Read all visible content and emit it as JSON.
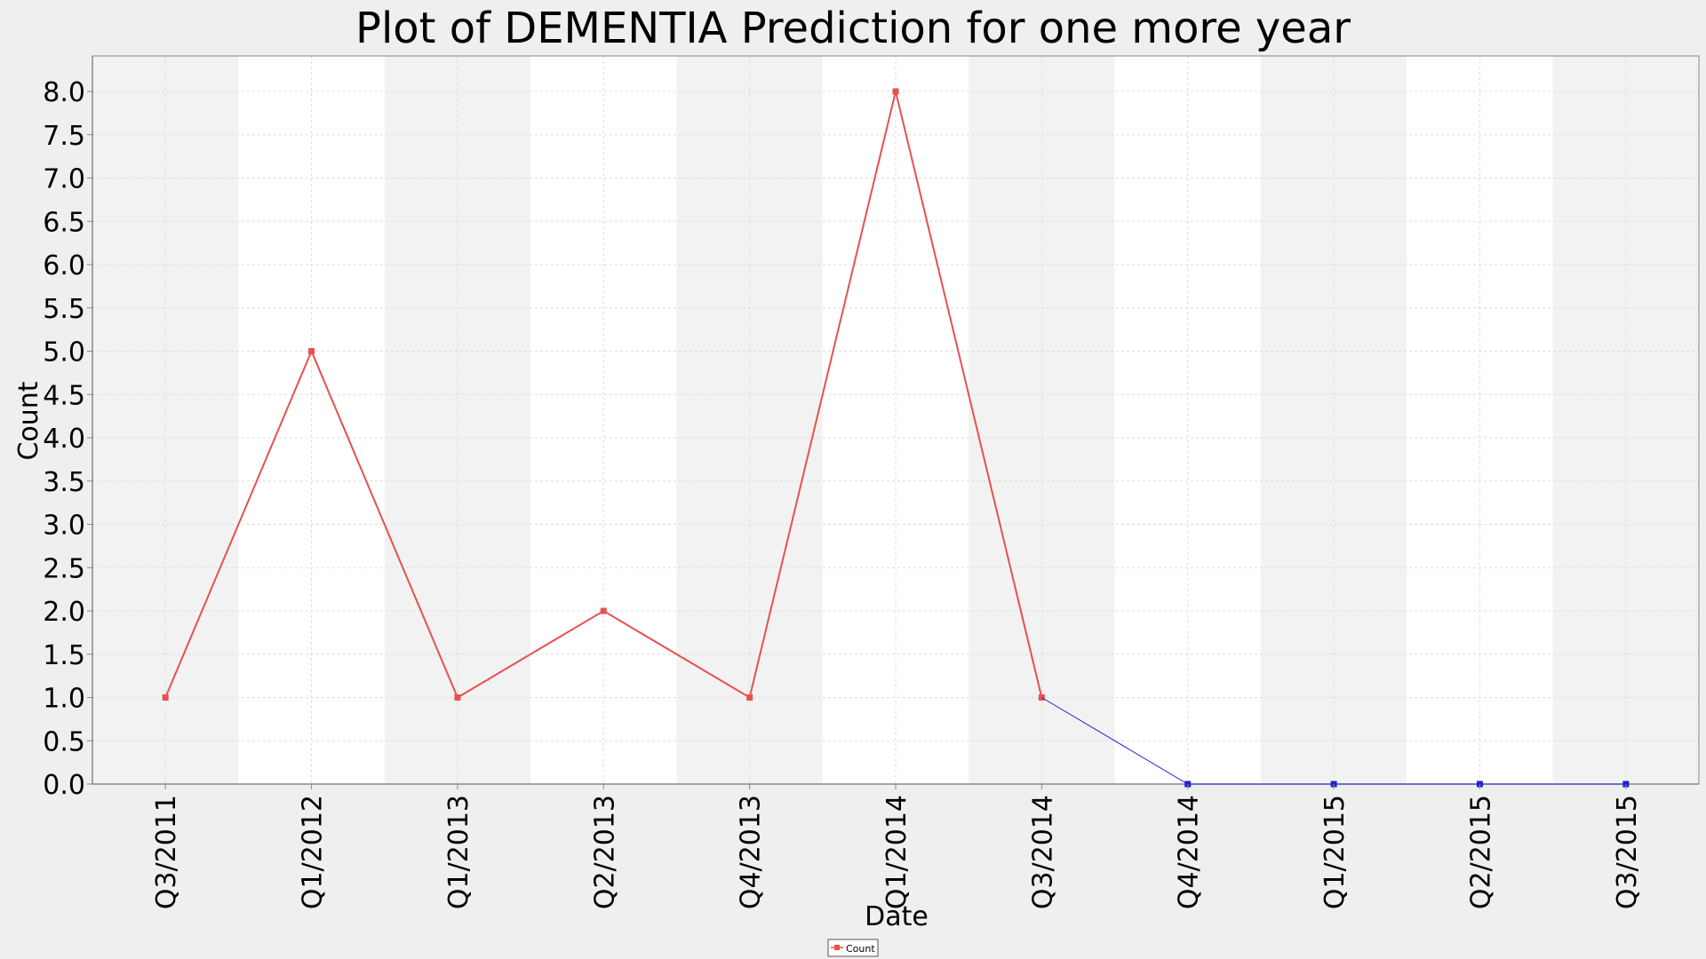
{
  "chart_data": {
    "type": "line",
    "title": "Plot of DEMENTIA Prediction for one more year",
    "xlabel": "Date",
    "ylabel": "Count",
    "categories": [
      "Q3/2011",
      "Q1/2012",
      "Q1/2013",
      "Q2/2013",
      "Q4/2013",
      "Q1/2014",
      "Q3/2014",
      "Q4/2014",
      "Q1/2015",
      "Q2/2015",
      "Q3/2015"
    ],
    "ylim": [
      0,
      8
    ],
    "yticks": [
      "0.0",
      "0.5",
      "1.0",
      "1.5",
      "2.0",
      "2.5",
      "3.0",
      "3.5",
      "4.0",
      "4.5",
      "5.0",
      "5.5",
      "6.0",
      "6.5",
      "7.0",
      "7.5",
      "8.0"
    ],
    "grid": true,
    "legend_position": "bottom-center",
    "series": [
      {
        "name": "Count",
        "color": "#e8504f",
        "values": [
          1,
          5,
          1,
          2,
          1,
          8,
          1,
          null,
          null,
          null,
          null
        ]
      },
      {
        "color": "#1f1fd6",
        "values": [
          null,
          null,
          null,
          null,
          null,
          null,
          1,
          0,
          0,
          0,
          0
        ]
      }
    ],
    "colors": {
      "band_dark": "#f2f2f2",
      "band_light": "#ffffff",
      "grid": "#dcdcdc",
      "axis": "#888888",
      "text": "#000000"
    }
  }
}
